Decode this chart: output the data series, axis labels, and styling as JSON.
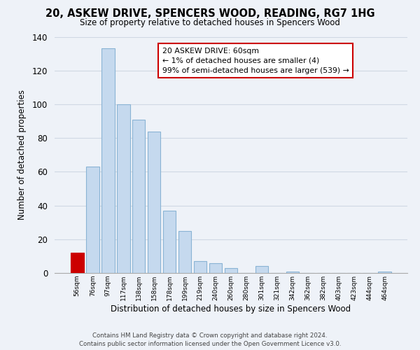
{
  "title": "20, ASKEW DRIVE, SPENCERS WOOD, READING, RG7 1HG",
  "subtitle": "Size of property relative to detached houses in Spencers Wood",
  "xlabel": "Distribution of detached houses by size in Spencers Wood",
  "ylabel": "Number of detached properties",
  "bar_labels": [
    "56sqm",
    "76sqm",
    "97sqm",
    "117sqm",
    "138sqm",
    "158sqm",
    "178sqm",
    "199sqm",
    "219sqm",
    "240sqm",
    "260sqm",
    "280sqm",
    "301sqm",
    "321sqm",
    "342sqm",
    "362sqm",
    "382sqm",
    "403sqm",
    "423sqm",
    "444sqm",
    "464sqm"
  ],
  "bar_values": [
    12,
    63,
    133,
    100,
    91,
    84,
    37,
    25,
    7,
    6,
    3,
    0,
    4,
    0,
    1,
    0,
    0,
    0,
    0,
    0,
    1
  ],
  "bar_color": "#c5d9ee",
  "highlight_bar_color": "#cc0000",
  "highlight_bar_index": 0,
  "highlight_bar_outline": "#cc0000",
  "normal_bar_outline": "#8ab4d4",
  "ylim": [
    0,
    140
  ],
  "yticks": [
    0,
    20,
    40,
    60,
    80,
    100,
    120,
    140
  ],
  "annotation_title": "20 ASKEW DRIVE: 60sqm",
  "annotation_line1": "← 1% of detached houses are smaller (4)",
  "annotation_line2": "99% of semi-detached houses are larger (539) →",
  "annotation_box_color": "#ffffff",
  "annotation_box_edge": "#cc0000",
  "footer_line1": "Contains HM Land Registry data © Crown copyright and database right 2024.",
  "footer_line2": "Contains public sector information licensed under the Open Government Licence v3.0.",
  "grid_color": "#d0d8e4",
  "background_color": "#eef2f8",
  "plot_bg_color": "#eef2f8",
  "fig_width": 6.0,
  "fig_height": 5.0
}
